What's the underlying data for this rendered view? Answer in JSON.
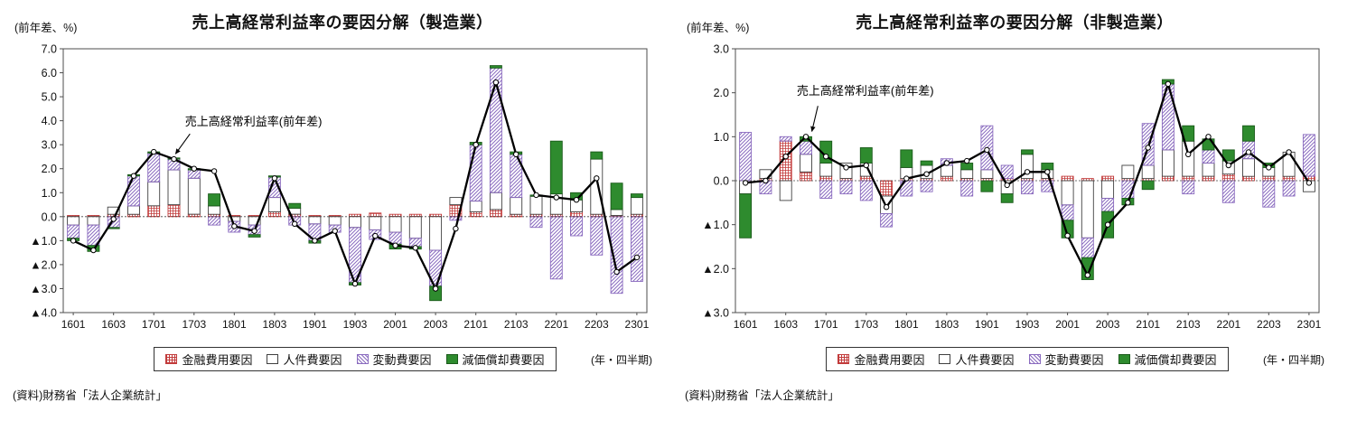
{
  "colors": {
    "financial": "#c23b3b",
    "personnel_border": "#404040",
    "variable": "#8a6bbf",
    "depreciation": "#2e8b2e",
    "line": "#000000"
  },
  "chart_data": [
    {
      "type": "bar",
      "subtype": "stacked-bar-with-line",
      "title": "売上高経常利益率の要因分解（製造業）",
      "unit_label": "(前年差、%)",
      "x_axis_note": "(年・四半期)",
      "source": "(資料)財務省「法人企業統計」",
      "annotation": "売上高経常利益率(前年差)",
      "legend_position": "bottom",
      "grid": false,
      "ylim": [
        -4.0,
        7.0
      ],
      "ytick_step": 1.0,
      "negative_prefix": "▲",
      "categories": [
        "1601",
        "1602",
        "1603",
        "1604",
        "1701",
        "1702",
        "1703",
        "1704",
        "1801",
        "1802",
        "1803",
        "1804",
        "1901",
        "1902",
        "1903",
        "1904",
        "2001",
        "2002",
        "2003",
        "2004",
        "2101",
        "2102",
        "2103",
        "2104",
        "2201",
        "2202",
        "2203",
        "2204",
        "2301"
      ],
      "x_tick_labels": [
        "1601",
        "1603",
        "1701",
        "1703",
        "1801",
        "1803",
        "1901",
        "1903",
        "2001",
        "2003",
        "2101",
        "2103",
        "2201",
        "2203",
        "2301"
      ],
      "series": [
        {
          "name": "金融費用要因",
          "style": "red-crosshatch",
          "values": [
            0.05,
            0.05,
            0.1,
            0.1,
            0.45,
            0.5,
            0.1,
            0.1,
            0.05,
            0.05,
            0.2,
            0.1,
            0.05,
            0.05,
            0.1,
            0.15,
            0.1,
            0.1,
            0.1,
            0.5,
            0.2,
            0.3,
            0.1,
            0.1,
            0.1,
            0.2,
            0.1,
            0.05,
            0.1
          ]
        },
        {
          "name": "人件費要因",
          "style": "white",
          "values": [
            -0.35,
            -0.35,
            0.3,
            0.35,
            1.0,
            1.45,
            1.5,
            0.35,
            -0.2,
            -0.35,
            0.6,
            0.25,
            -0.3,
            -0.35,
            -0.45,
            -0.55,
            -0.65,
            -0.9,
            -1.4,
            0.3,
            0.45,
            0.7,
            0.7,
            0.75,
            0.85,
            0.5,
            2.3,
            0.25,
            0.7
          ]
        },
        {
          "name": "変動費要因",
          "style": "purple-diagonal",
          "values": [
            -0.55,
            -0.85,
            -0.45,
            1.25,
            1.2,
            0.45,
            0.35,
            -0.35,
            -0.45,
            -0.4,
            0.85,
            -0.35,
            -0.7,
            -0.3,
            -2.3,
            -0.4,
            -0.5,
            -0.35,
            -1.5,
            -0.15,
            2.35,
            5.2,
            1.8,
            -0.45,
            -2.6,
            -0.8,
            -1.6,
            -3.2,
            -2.7
          ]
        },
        {
          "name": "減価償却費要因",
          "style": "green-solid",
          "values": [
            -0.1,
            -0.25,
            -0.05,
            0.05,
            0.05,
            0.05,
            0.05,
            0.5,
            0.0,
            -0.1,
            0.05,
            0.2,
            -0.1,
            0.0,
            -0.1,
            0.0,
            -0.2,
            -0.1,
            -0.6,
            0.0,
            0.1,
            0.1,
            0.1,
            0.05,
            2.2,
            0.3,
            0.3,
            1.1,
            0.15
          ]
        }
      ],
      "line": {
        "name": "売上高経常利益率(前年差)",
        "values": [
          -1.0,
          -1.4,
          -0.1,
          1.7,
          2.7,
          2.4,
          2.0,
          1.9,
          -0.4,
          -0.6,
          1.6,
          -0.3,
          -1.0,
          -0.6,
          -2.8,
          -0.8,
          -1.2,
          -1.3,
          -3.0,
          -0.5,
          3.0,
          5.6,
          2.6,
          0.9,
          0.8,
          0.7,
          1.6,
          -2.3,
          -1.7
        ]
      }
    },
    {
      "type": "bar",
      "subtype": "stacked-bar-with-line",
      "title": "売上高経常利益率の要因分解（非製造業）",
      "unit_label": "(前年差、%)",
      "x_axis_note": "(年・四半期)",
      "source": "(資料)財務省「法人企業統計」",
      "annotation": "売上高経常利益率(前年差)",
      "legend_position": "bottom",
      "grid": false,
      "ylim": [
        -3.0,
        3.0
      ],
      "ytick_step": 1.0,
      "negative_prefix": "▲",
      "categories": [
        "1601",
        "1602",
        "1603",
        "1604",
        "1701",
        "1702",
        "1703",
        "1704",
        "1801",
        "1802",
        "1803",
        "1804",
        "1901",
        "1902",
        "1903",
        "1904",
        "2001",
        "2002",
        "2003",
        "2004",
        "2101",
        "2102",
        "2103",
        "2104",
        "2201",
        "2202",
        "2203",
        "2204",
        "2301"
      ],
      "x_tick_labels": [
        "1601",
        "1603",
        "1701",
        "1703",
        "1801",
        "1803",
        "1901",
        "1903",
        "2001",
        "2003",
        "2101",
        "2103",
        "2201",
        "2203",
        "2301"
      ],
      "series": [
        {
          "name": "金融費用要因",
          "style": "red-crosshatch",
          "values": [
            0.0,
            0.05,
            0.9,
            0.2,
            0.1,
            0.05,
            0.1,
            -0.35,
            0.05,
            0.05,
            0.1,
            0.05,
            0.05,
            0.05,
            0.05,
            0.05,
            0.1,
            0.05,
            0.1,
            0.05,
            0.05,
            0.1,
            0.1,
            0.1,
            0.15,
            0.1,
            0.1,
            0.1,
            0.1
          ]
        },
        {
          "name": "人件費要因",
          "style": "white",
          "values": [
            -0.3,
            0.2,
            -0.45,
            0.4,
            0.3,
            0.35,
            0.3,
            -0.4,
            0.25,
            0.3,
            0.25,
            0.2,
            0.2,
            -0.3,
            0.55,
            0.2,
            -0.55,
            -1.3,
            -0.4,
            0.3,
            0.3,
            0.6,
            0.8,
            0.3,
            0.3,
            0.4,
            0.2,
            0.55,
            -0.25
          ]
        },
        {
          "name": "変動費要因",
          "style": "purple-diagonal",
          "values": [
            1.1,
            -0.3,
            0.1,
            0.3,
            -0.4,
            -0.3,
            -0.45,
            -0.3,
            -0.35,
            -0.25,
            0.15,
            -0.35,
            1.0,
            0.3,
            -0.3,
            -0.25,
            -0.35,
            -0.45,
            -0.3,
            -0.4,
            0.95,
            1.5,
            -0.3,
            0.3,
            -0.5,
            0.4,
            -0.6,
            -0.35,
            0.95
          ]
        },
        {
          "name": "減価償却費要因",
          "style": "green-solid",
          "values": [
            -1.0,
            0.0,
            0.0,
            0.1,
            0.5,
            0.0,
            0.35,
            0.0,
            0.4,
            0.1,
            0.0,
            0.15,
            -0.25,
            -0.2,
            0.1,
            0.15,
            -0.4,
            -0.5,
            -0.6,
            -0.15,
            -0.2,
            0.1,
            0.35,
            0.25,
            0.25,
            0.35,
            0.1,
            0.0,
            0.0
          ]
        }
      ],
      "line": {
        "name": "売上高経常利益率(前年差)",
        "values": [
          -0.05,
          0.0,
          0.55,
          1.0,
          0.55,
          0.3,
          0.35,
          -0.6,
          0.05,
          0.15,
          0.4,
          0.45,
          0.7,
          -0.1,
          0.2,
          0.2,
          -1.25,
          -2.15,
          -1.0,
          -0.5,
          0.75,
          2.2,
          0.6,
          1.0,
          0.35,
          0.65,
          0.3,
          0.65,
          -0.05
        ]
      }
    }
  ]
}
